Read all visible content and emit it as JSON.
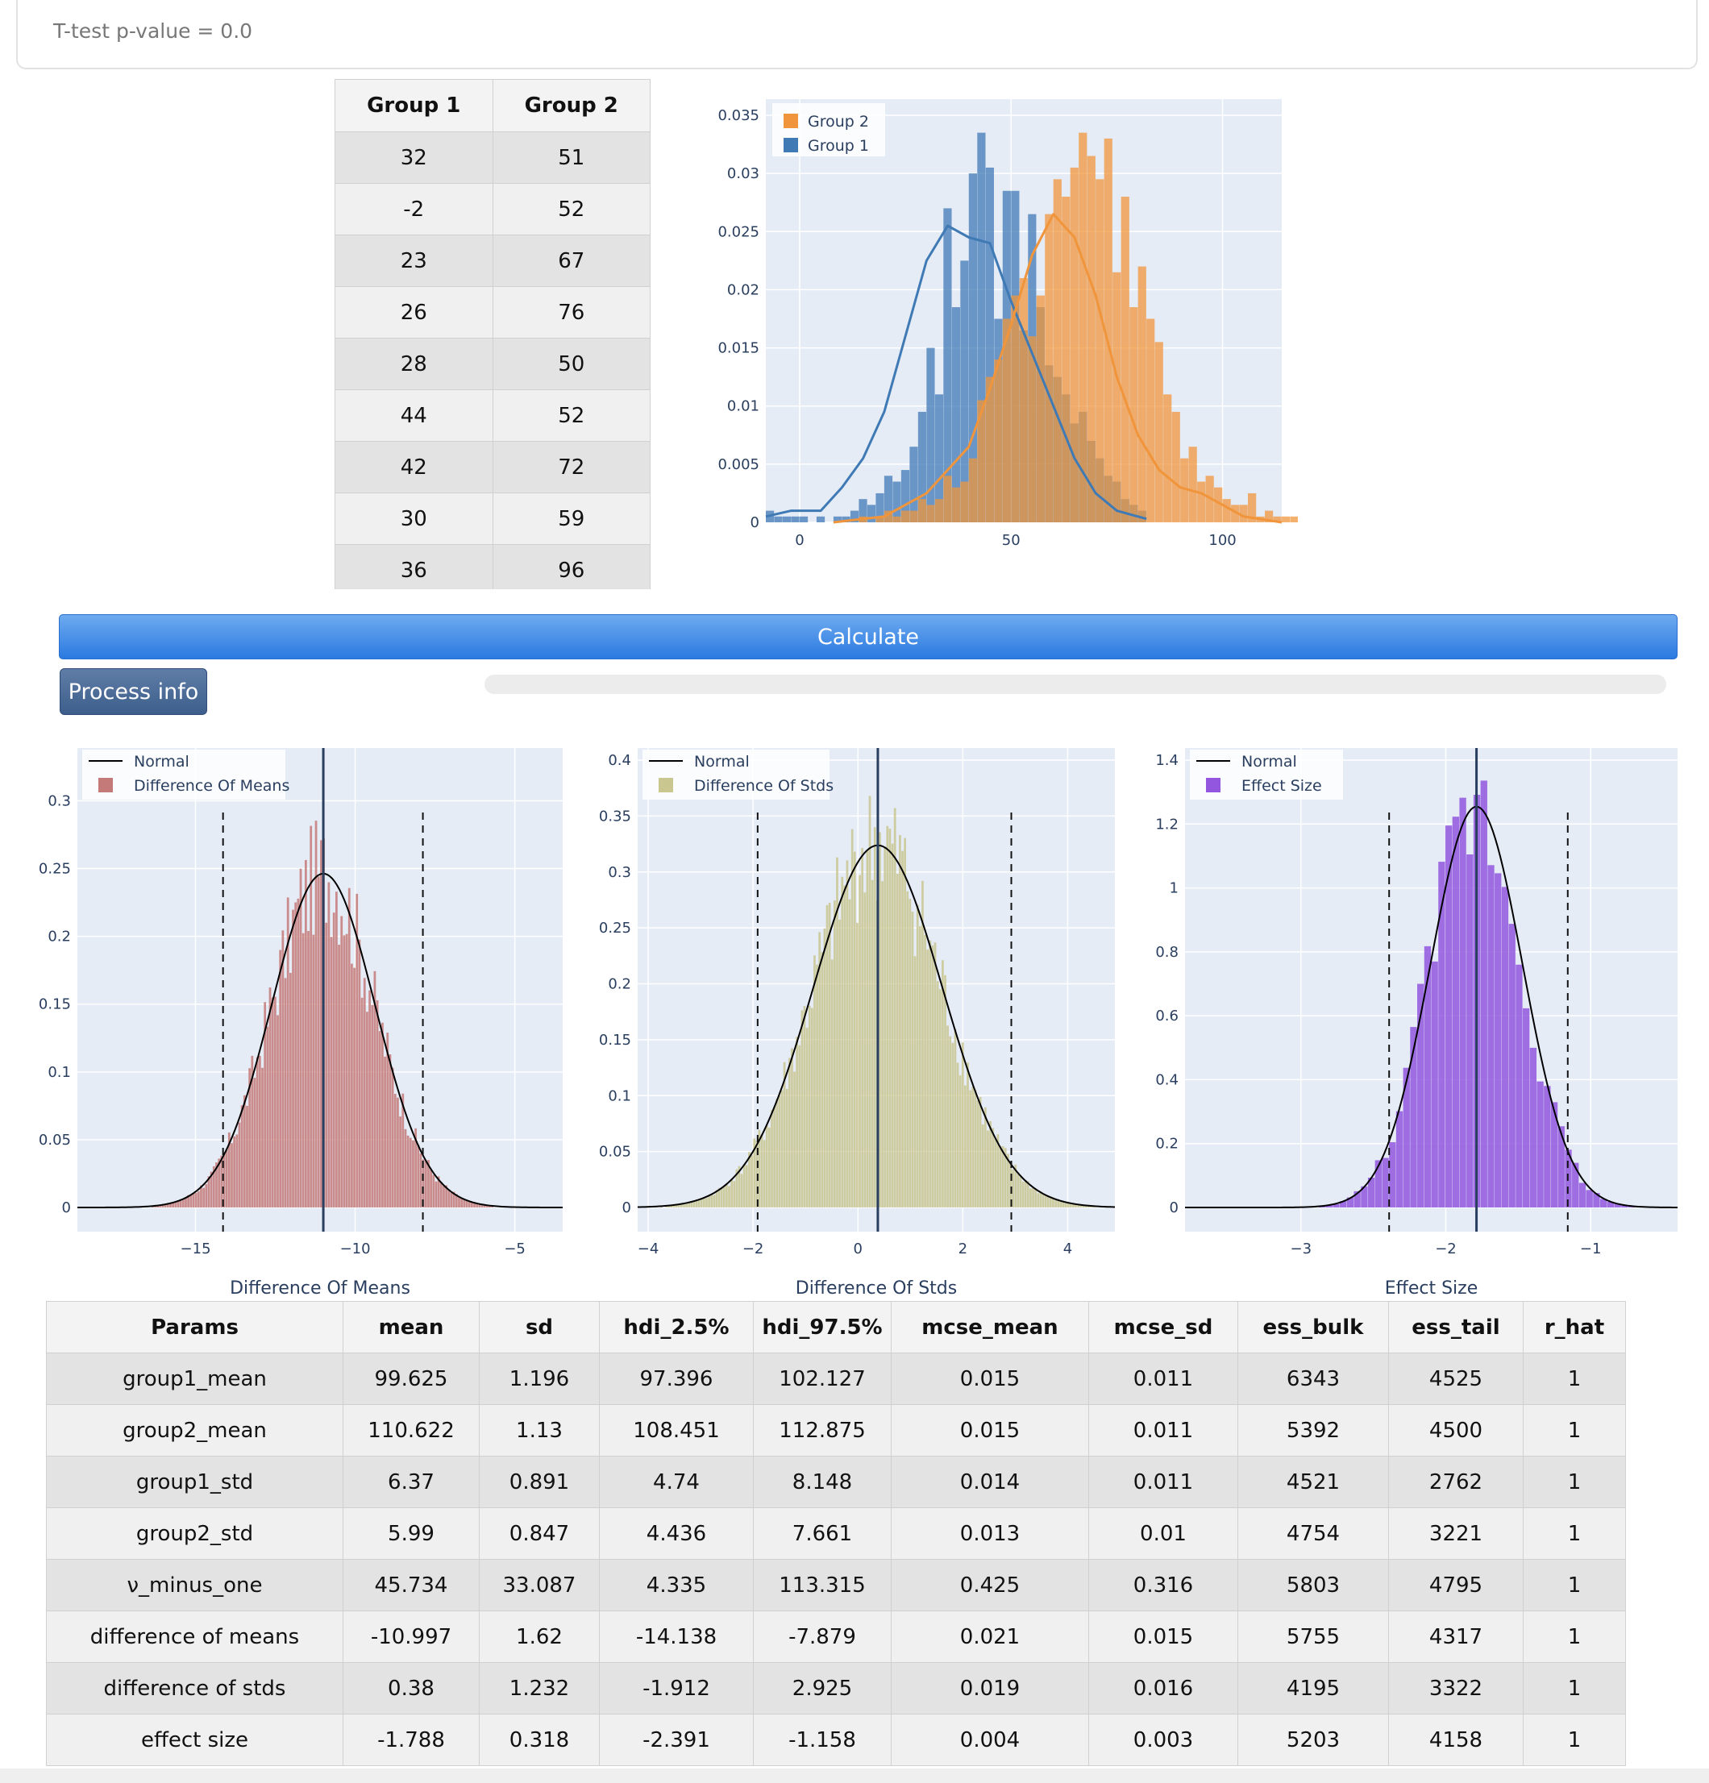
{
  "header": {
    "ttest_text": "T-test p-value = 0.0"
  },
  "data_table": {
    "headers": [
      "Group 1",
      "Group 2"
    ],
    "rows": [
      [
        "32",
        "51"
      ],
      [
        "-2",
        "52"
      ],
      [
        "23",
        "67"
      ],
      [
        "26",
        "76"
      ],
      [
        "28",
        "50"
      ],
      [
        "44",
        "52"
      ],
      [
        "42",
        "72"
      ],
      [
        "30",
        "59"
      ],
      [
        "36",
        "96"
      ]
    ]
  },
  "buttons": {
    "calculate": "Calculate",
    "process_info": "Process info"
  },
  "progress": {
    "value": 0
  },
  "chart_data": [
    {
      "type": "histogram",
      "title": "",
      "xlabel": "",
      "ylabel": "",
      "xlim": [
        -8,
        114
      ],
      "ylim": [
        0,
        0.035
      ],
      "xticks": [
        0,
        50,
        100
      ],
      "yticks": [
        0,
        0.005,
        0.01,
        0.015,
        0.02,
        0.025,
        0.03,
        0.035
      ],
      "ytick_labels": [
        "0",
        "0.005",
        "0.01",
        "0.015",
        "0.02",
        "0.025",
        "0.03",
        "0.035"
      ],
      "legend": "top-left",
      "series": [
        {
          "name": "Group 2",
          "color": "#f0953c",
          "bins": [
            14,
            118
          ],
          "bin_width": 2,
          "values": [
            0.0005,
            0,
            0.0005,
            0.001,
            0.0005,
            0.001,
            0.001,
            0.002,
            0.0015,
            0.002,
            0.004,
            0.003,
            0.0035,
            0.0055,
            0.0105,
            0.0125,
            0.014,
            0.0175,
            0.0195,
            0.021,
            0.016,
            0.0195,
            0.0265,
            0.0295,
            0.028,
            0.0305,
            0.0335,
            0.0315,
            0.0295,
            0.033,
            0.0215,
            0.028,
            0.0185,
            0.022,
            0.0175,
            0.0155,
            0.011,
            0.0095,
            0.0055,
            0.0065,
            0.0035,
            0.004,
            0.003,
            0.002,
            0.0015,
            0.0015,
            0.0025,
            0.0005,
            0.001,
            0.0005,
            0.0005,
            0.0005
          ],
          "kde_x": [
            8,
            20,
            30,
            40,
            45,
            50,
            55,
            60,
            65,
            70,
            75,
            80,
            85,
            90,
            95,
            100,
            105,
            114
          ],
          "kde_y": [
            0,
            0.0005,
            0.0025,
            0.0065,
            0.0115,
            0.017,
            0.023,
            0.0265,
            0.0245,
            0.0195,
            0.0125,
            0.0075,
            0.0045,
            0.003,
            0.0025,
            0.0015,
            0.0005,
            0
          ]
        },
        {
          "name": "Group 1",
          "color": "#3f7ab5",
          "bins": [
            -8,
            82
          ],
          "bin_width": 2,
          "values": [
            0.001,
            0.0005,
            0.0005,
            0.0005,
            0.0005,
            0,
            0.0005,
            0,
            0.0005,
            0.0005,
            0.001,
            0.002,
            0.0015,
            0.0025,
            0.004,
            0.0035,
            0.0045,
            0.0065,
            0.0095,
            0.015,
            0.011,
            0.027,
            0.0185,
            0.0225,
            0.03,
            0.0335,
            0.0305,
            0.0175,
            0.0285,
            0.0285,
            0.0165,
            0.0265,
            0.0185,
            0.0135,
            0.0125,
            0.011,
            0.0085,
            0.0095,
            0.007,
            0.0055,
            0.004,
            0.0035,
            0.002,
            0.0015,
            0.001
          ],
          "kde_x": [
            -8,
            -2,
            5,
            10,
            15,
            20,
            25,
            30,
            35,
            40,
            45,
            50,
            55,
            60,
            65,
            70,
            75,
            82
          ],
          "kde_y": [
            0.0005,
            0.001,
            0.001,
            0.003,
            0.0055,
            0.0095,
            0.016,
            0.0225,
            0.0255,
            0.0245,
            0.024,
            0.019,
            0.0145,
            0.01,
            0.0055,
            0.0025,
            0.001,
            0.0003
          ]
        }
      ]
    },
    {
      "type": "histogram",
      "xlabel": "Difference Of Means",
      "xlim": [
        -18.7,
        -3.5
      ],
      "ylim": [
        0,
        0.33
      ],
      "xticks": [
        -15,
        -10,
        -5
      ],
      "xtick_labels": [
        "−15",
        "−10",
        "−5"
      ],
      "yticks": [
        0,
        0.05,
        0.1,
        0.15,
        0.2,
        0.25,
        0.3
      ],
      "ytick_labels": [
        "0",
        "0.05",
        "0.1",
        "0.15",
        "0.2",
        "0.25",
        "0.3"
      ],
      "hist_name": "Difference Of Means",
      "hist_color": "#c47a78",
      "normal_name": "Normal",
      "mean": -10.997,
      "sd": 1.62,
      "hdi": [
        -14.138,
        -7.879
      ],
      "legend": "top-left"
    },
    {
      "type": "histogram",
      "xlabel": "Difference Of Stds",
      "xlim": [
        -4.2,
        4.9
      ],
      "ylim": [
        0,
        0.4
      ],
      "xticks": [
        -4,
        -2,
        0,
        2,
        4
      ],
      "xtick_labels": [
        "−4",
        "−2",
        "0",
        "2",
        "4"
      ],
      "yticks": [
        0,
        0.05,
        0.1,
        0.15,
        0.2,
        0.25,
        0.3,
        0.35,
        0.4
      ],
      "ytick_labels": [
        "0",
        "0.05",
        "0.1",
        "0.15",
        "0.2",
        "0.25",
        "0.3",
        "0.35",
        "0.4"
      ],
      "hist_name": "Difference Of Stds",
      "hist_color": "#c9c690",
      "normal_name": "Normal",
      "mean": 0.38,
      "sd": 1.232,
      "hdi": [
        -1.912,
        2.925
      ],
      "legend": "top-left"
    },
    {
      "type": "histogram",
      "xlabel": "Effect Size",
      "xlim": [
        -3.8,
        -0.4
      ],
      "ylim": [
        0,
        1.4
      ],
      "xticks": [
        -3,
        -2,
        -1
      ],
      "xtick_labels": [
        "−3",
        "−2",
        "−1"
      ],
      "yticks": [
        0,
        0.2,
        0.4,
        0.6,
        0.8,
        1,
        1.2,
        1.4
      ],
      "ytick_labels": [
        "0",
        "0.2",
        "0.4",
        "0.6",
        "0.8",
        "1",
        "1.2",
        "1.4"
      ],
      "hist_name": "Effect Size",
      "hist_color": "#9257de",
      "normal_name": "Normal",
      "mean": -1.788,
      "sd": 0.318,
      "hdi": [
        -2.391,
        -1.158
      ],
      "legend": "top-left"
    }
  ],
  "params_table": {
    "headers": [
      "Params",
      "mean",
      "sd",
      "hdi_2.5%",
      "hdi_97.5%",
      "mcse_mean",
      "mcse_sd",
      "ess_bulk",
      "ess_tail",
      "r_hat"
    ],
    "rows": [
      [
        "group1_mean",
        "99.625",
        "1.196",
        "97.396",
        "102.127",
        "0.015",
        "0.011",
        "6343",
        "4525",
        "1"
      ],
      [
        "group2_mean",
        "110.622",
        "1.13",
        "108.451",
        "112.875",
        "0.015",
        "0.011",
        "5392",
        "4500",
        "1"
      ],
      [
        "group1_std",
        "6.37",
        "0.891",
        "4.74",
        "8.148",
        "0.014",
        "0.011",
        "4521",
        "2762",
        "1"
      ],
      [
        "group2_std",
        "5.99",
        "0.847",
        "4.436",
        "7.661",
        "0.013",
        "0.01",
        "4754",
        "3221",
        "1"
      ],
      [
        "ν_minus_one",
        "45.734",
        "33.087",
        "4.335",
        "113.315",
        "0.425",
        "0.316",
        "5803",
        "4795",
        "1"
      ],
      [
        "difference of means",
        "-10.997",
        "1.62",
        "-14.138",
        "-7.879",
        "0.021",
        "0.015",
        "5755",
        "4317",
        "1"
      ],
      [
        "difference of stds",
        "0.38",
        "1.232",
        "-1.912",
        "2.925",
        "0.019",
        "0.016",
        "4195",
        "3322",
        "1"
      ],
      [
        "effect size",
        "-1.788",
        "0.318",
        "-2.391",
        "-1.158",
        "0.004",
        "0.003",
        "5203",
        "4158",
        "1"
      ]
    ]
  }
}
